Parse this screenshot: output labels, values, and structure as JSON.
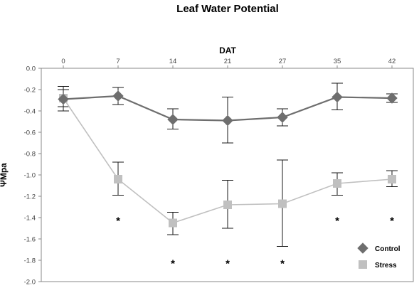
{
  "chart_data": {
    "type": "line",
    "title": "Leaf Water Potential",
    "xlabel": "DAT",
    "ylabel": "ΨMpa",
    "x": [
      0,
      7,
      14,
      21,
      27,
      35,
      42
    ],
    "x_tick_labels": [
      "0",
      "7",
      "14",
      "21",
      "27",
      "35",
      "42"
    ],
    "x_axis_position": "top",
    "ylim": [
      -2.0,
      0.0
    ],
    "y_ticks": [
      0.0,
      -0.2,
      -0.4,
      -0.6,
      -0.8,
      -1.0,
      -1.2,
      -1.4,
      -1.6,
      -1.8,
      -2.0
    ],
    "y_tick_labels": [
      "0.0",
      "-0.2",
      "-0.4",
      "-0.6",
      "-0.8",
      "-1.0",
      "-1.2",
      "-1.4",
      "-1.6",
      "-1.8",
      "-2.0"
    ],
    "grid": false,
    "legend_position": "bottom-right",
    "series": [
      {
        "name": "Control",
        "marker": "diamond",
        "color": "#6e6e6e",
        "values": [
          -0.29,
          -0.26,
          -0.48,
          -0.49,
          -0.46,
          -0.27,
          -0.28
        ],
        "error_low": [
          -0.4,
          -0.34,
          -0.57,
          -0.7,
          -0.54,
          -0.39,
          -0.32
        ],
        "error_high": [
          -0.17,
          -0.18,
          -0.38,
          -0.27,
          -0.38,
          -0.14,
          -0.24
        ]
      },
      {
        "name": "Stress",
        "marker": "square",
        "color": "#c0c0c0",
        "values": [
          -0.28,
          -1.04,
          -1.45,
          -1.28,
          -1.27,
          -1.08,
          -1.04
        ],
        "error_low": [
          -0.36,
          -1.19,
          -1.56,
          -1.5,
          -1.67,
          -1.19,
          -1.11
        ],
        "error_high": [
          -0.2,
          -0.88,
          -1.35,
          -1.05,
          -0.86,
          -0.98,
          -0.96
        ]
      }
    ],
    "significance": {
      "symbol": "*",
      "x": [
        7,
        14,
        21,
        27,
        35,
        42
      ],
      "y": [
        -1.41,
        -1.81,
        -1.81,
        -1.81,
        -1.41,
        -1.41
      ]
    }
  }
}
